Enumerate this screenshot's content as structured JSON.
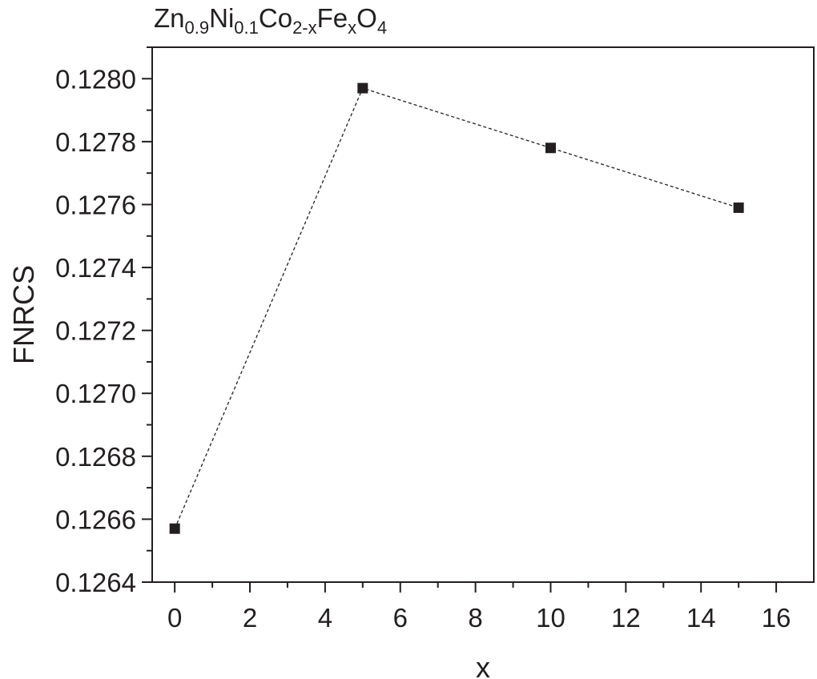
{
  "chart_data": {
    "type": "line",
    "title": {
      "parts": [
        {
          "text": "Zn",
          "sub": false
        },
        {
          "text": "0.9",
          "sub": true
        },
        {
          "text": "Ni",
          "sub": false
        },
        {
          "text": "0.1",
          "sub": true
        },
        {
          "text": "Co",
          "sub": false
        },
        {
          "text": "2-x",
          "sub": true
        },
        {
          "text": "Fe",
          "sub": false
        },
        {
          "text": "x",
          "sub": true
        },
        {
          "text": "O",
          "sub": false
        },
        {
          "text": "4",
          "sub": true
        }
      ]
    },
    "xlabel": "x",
    "ylabel": "FNRCS",
    "xlim": [
      -0.6,
      17
    ],
    "ylim": [
      0.1264,
      0.1281
    ],
    "x_ticks": [
      "0",
      "2",
      "4",
      "6",
      "8",
      "10",
      "12",
      "14",
      "16"
    ],
    "y_ticks": [
      "0.1264",
      "0.1266",
      "0.1268",
      "0.1270",
      "0.1272",
      "0.1274",
      "0.1276",
      "0.1278",
      "0.1280"
    ],
    "marker": "square",
    "line_style": "dashed",
    "color": "#231f20",
    "grid": false,
    "series": [
      {
        "x": [
          0,
          5,
          10,
          15
        ],
        "values": [
          0.12657,
          0.12797,
          0.12778,
          0.12759
        ]
      }
    ]
  }
}
